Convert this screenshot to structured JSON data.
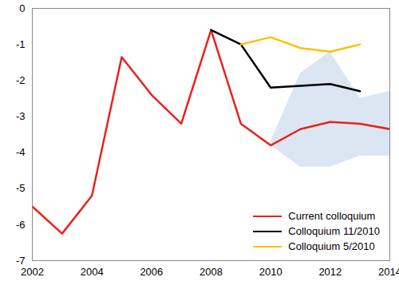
{
  "chart_data": {
    "type": "line",
    "x": [
      2002,
      2003,
      2004,
      2005,
      2006,
      2007,
      2008,
      2009,
      2010,
      2011,
      2012,
      2013,
      2014
    ],
    "series": [
      {
        "name": "Current colloquium",
        "color": "#e8221a",
        "values": [
          -5.5,
          -6.25,
          -5.2,
          -1.35,
          -2.4,
          -3.2,
          -0.6,
          -3.2,
          -3.8,
          -3.35,
          -3.15,
          -3.2,
          -3.35
        ]
      },
      {
        "name": "Colloquium 11/2010",
        "color": "#000000",
        "values": [
          null,
          null,
          null,
          null,
          null,
          null,
          -0.6,
          -1.0,
          -2.2,
          -2.15,
          -2.1,
          -2.3,
          null
        ]
      },
      {
        "name": "Colloquium 5/2010",
        "color": "#ffc000",
        "values": [
          null,
          null,
          null,
          null,
          null,
          null,
          null,
          -1.0,
          -0.8,
          -1.1,
          -1.2,
          -1.0,
          null
        ]
      }
    ],
    "band": {
      "color": "#dce6f2",
      "lower": [
        null,
        null,
        null,
        null,
        null,
        null,
        null,
        null,
        -3.8,
        -4.4,
        -4.4,
        -4.1,
        -4.1
      ],
      "upper": [
        null,
        null,
        null,
        null,
        null,
        null,
        null,
        null,
        -3.7,
        -1.8,
        -1.2,
        -2.5,
        -2.3
      ]
    },
    "xlim": [
      2002,
      2014
    ],
    "xticks": [
      2002,
      2004,
      2006,
      2008,
      2010,
      2012,
      2014
    ],
    "ylim": [
      -7,
      0
    ],
    "yticks": [
      -7,
      -6,
      -5,
      -4,
      -3,
      -2,
      -1,
      0
    ],
    "grid": false,
    "legend": "bottom-right"
  }
}
